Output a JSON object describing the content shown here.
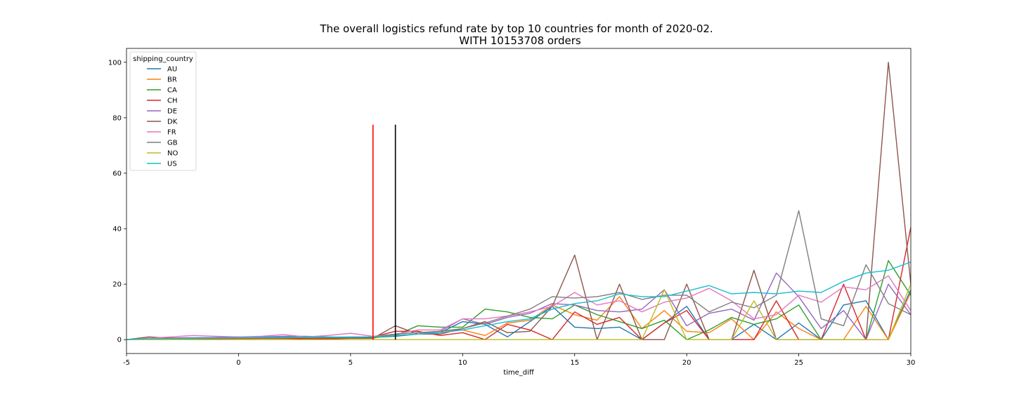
{
  "chart_data": {
    "type": "line",
    "title_line1": "The overall logistics refund rate by top 10 countries for month of 2020-02.",
    "title_line2": "WITH 10153708 orders",
    "xlabel": "time_diff",
    "ylabel": "",
    "xlim": [
      -5,
      30
    ],
    "ylim": [
      -5,
      105
    ],
    "xticks": [
      -5,
      0,
      5,
      10,
      15,
      20,
      25,
      30
    ],
    "yticks": [
      0,
      20,
      40,
      60,
      80,
      100
    ],
    "grid": false,
    "legend_title": "shipping_country",
    "legend_position": "upper-left",
    "x": [
      -5,
      -4,
      -3,
      -2,
      -1,
      0,
      1,
      2,
      3,
      4,
      5,
      6,
      7,
      8,
      9,
      10,
      11,
      12,
      13,
      14,
      15,
      16,
      17,
      18,
      19,
      20,
      21,
      22,
      23,
      24,
      25,
      26,
      27,
      28,
      29,
      30
    ],
    "series": [
      {
        "name": "AU",
        "color": "#1f77b4",
        "values": [
          0,
          0.3,
          0.3,
          0.4,
          0.4,
          0.4,
          0.5,
          0.5,
          0.5,
          0.6,
          0.6,
          0.8,
          1.2,
          2.0,
          2.5,
          6.5,
          5.5,
          1.0,
          6.5,
          12.0,
          4.5,
          4.0,
          4.5,
          0,
          6.0,
          12.0,
          0,
          0,
          5.5,
          0,
          6.0,
          0,
          12.5,
          14.0,
          0,
          18.0
        ]
      },
      {
        "name": "BR",
        "color": "#ff7f0e",
        "values": [
          0,
          0.2,
          0.2,
          0.3,
          0.3,
          0.3,
          0.4,
          0.4,
          0.5,
          0.5,
          0.6,
          0.5,
          2.0,
          2.5,
          3.0,
          3.5,
          1.5,
          6.0,
          7.0,
          12.5,
          9.0,
          7.0,
          15.5,
          4.0,
          10.5,
          3.0,
          2.5,
          7.5,
          0,
          10.0,
          4.0,
          0,
          0,
          12.0,
          0,
          17.0
        ]
      },
      {
        "name": "CA",
        "color": "#2ca02c",
        "values": [
          0,
          0.3,
          0.4,
          0.5,
          0.8,
          1.0,
          0.8,
          0.6,
          0.6,
          0.7,
          0.7,
          0.8,
          1.5,
          5.0,
          4.5,
          4.5,
          11.0,
          10.0,
          8.0,
          7.5,
          12.5,
          9.0,
          6.5,
          4.0,
          7.0,
          0,
          3.5,
          8.0,
          5.5,
          7.5,
          12.5,
          0,
          0,
          0,
          28.5,
          16.0
        ]
      },
      {
        "name": "CH",
        "color": "#d62728",
        "values": [
          0,
          0.3,
          0.3,
          0.4,
          0.4,
          0.5,
          0.5,
          0.5,
          0.3,
          0.3,
          0.5,
          1.0,
          3.0,
          3.0,
          1.5,
          2.5,
          0,
          5.5,
          3.5,
          0,
          10.0,
          5.5,
          8.0,
          0,
          6.0,
          10.5,
          0,
          0,
          0,
          14.0,
          0,
          0,
          20.0,
          0,
          0,
          40.5
        ]
      },
      {
        "name": "DE",
        "color": "#9467bd",
        "values": [
          0,
          0.5,
          0.6,
          0.7,
          0.8,
          0.9,
          1.0,
          1.2,
          1.2,
          1.0,
          0.8,
          1.0,
          1.5,
          2.0,
          3.0,
          7.5,
          5.5,
          8.0,
          9.5,
          13.0,
          12.5,
          10.5,
          10.0,
          11.0,
          18.0,
          5.0,
          9.5,
          11.0,
          7.0,
          24.0,
          15.5,
          4.0,
          10.5,
          0,
          20.0,
          9.0
        ]
      },
      {
        "name": "DK",
        "color": "#8c564b",
        "values": [
          0,
          1.0,
          0.5,
          0.5,
          0.5,
          0.5,
          0.5,
          0.5,
          1.0,
          0.5,
          0.5,
          0.5,
          5.0,
          2.0,
          2.0,
          4.0,
          6.5,
          2.5,
          3.0,
          12.0,
          30.5,
          0,
          20.0,
          0,
          0,
          20.0,
          0,
          0,
          25.0,
          0,
          0,
          0,
          0,
          0,
          100.0,
          20.0
        ]
      },
      {
        "name": "FR",
        "color": "#e377c2",
        "values": [
          0,
          0.5,
          1.0,
          1.5,
          1.2,
          1.0,
          1.2,
          1.8,
          1.0,
          1.5,
          2.3,
          1.2,
          2.0,
          3.5,
          3.5,
          7.5,
          7.5,
          8.5,
          10.0,
          12.0,
          17.0,
          12.5,
          14.0,
          10.0,
          13.5,
          15.0,
          18.5,
          14.0,
          7.5,
          9.0,
          16.0,
          13.5,
          19.0,
          18.0,
          23.0,
          10.5
        ]
      },
      {
        "name": "GB",
        "color": "#7f7f7f",
        "values": [
          0,
          0.2,
          0.3,
          0.4,
          0.5,
          0.6,
          0.6,
          0.7,
          0.7,
          0.8,
          0.8,
          1.0,
          2.0,
          2.5,
          3.0,
          4.0,
          6.0,
          8.5,
          11.0,
          15.5,
          15.0,
          15.5,
          17.0,
          14.5,
          16.0,
          16.0,
          10.0,
          13.5,
          11.5,
          16.0,
          46.5,
          7.5,
          5.0,
          27.0,
          13.0,
          9.0
        ]
      },
      {
        "name": "NO",
        "color": "#bcbd22",
        "values": [
          0,
          0,
          0,
          0,
          0,
          0,
          0,
          0,
          0,
          0,
          0,
          0,
          0,
          0,
          0,
          0,
          0,
          0,
          0,
          0,
          0,
          0,
          0,
          0,
          18.0,
          0,
          0,
          0,
          14.0,
          0,
          0,
          0,
          0,
          0,
          0,
          20.0
        ]
      },
      {
        "name": "US",
        "color": "#17becf",
        "values": [
          0,
          0.3,
          0.4,
          0.5,
          0.6,
          0.7,
          0.8,
          0.9,
          0.9,
          0.9,
          1.0,
          1.0,
          1.5,
          2.0,
          2.5,
          3.5,
          5.0,
          6.5,
          7.5,
          11.0,
          13.0,
          14.0,
          16.5,
          15.5,
          15.5,
          17.5,
          19.5,
          16.5,
          17.0,
          16.5,
          17.5,
          17.0,
          21.0,
          24.0,
          25.0,
          28.0
        ]
      }
    ],
    "vlines": [
      {
        "x": 6,
        "y_top": 77.5,
        "color": "#ff0000"
      },
      {
        "x": 7,
        "y_top": 77.5,
        "color": "#000000"
      }
    ]
  }
}
